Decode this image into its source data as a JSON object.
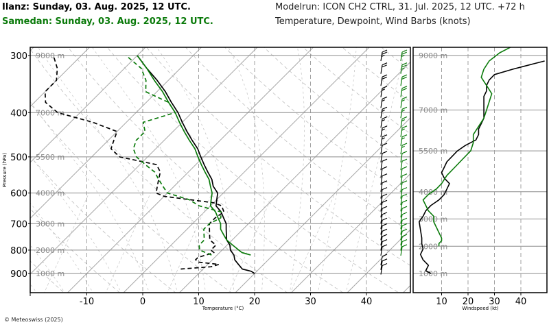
{
  "header": {
    "station1": "Ilanz: Sunday, 03. Aug. 2025, 12 UTC.",
    "station2": "Samedan: Sunday, 03. Aug. 2025, 12 UTC.",
    "modelrun": "Modelrun: ICON CH2 CTRL, 31. Jul. 2025, 12 UTC. +72 h",
    "params": "Temperature, Dewpoint, Wind Barbs (knots)"
  },
  "copyright": "© Meteoswiss (2025)",
  "colors": {
    "ilanz": "#000000",
    "samedan": "#0a7a0a",
    "grid": "#9a9a9a"
  },
  "chart_data": [
    {
      "type": "line",
      "subtype": "skew-t",
      "xlabel": "Temperature (°C)",
      "ylabel": "Pressure (hPa)",
      "x_ticks": [
        -10,
        0,
        10,
        20,
        30,
        40
      ],
      "pressure_ticks": [
        300,
        400,
        500,
        600,
        700,
        800,
        900
      ],
      "altitude_labels": [
        "9000 m",
        "7000 m",
        "5500 m",
        "4000 m",
        "3000 m",
        "2000 m",
        "1000 m"
      ],
      "series": [
        {
          "name": "Ilanz",
          "variable": "temperature",
          "style": "solid",
          "color": "#000000",
          "points": [
            [
              900,
              20
            ],
            [
              890,
              19
            ],
            [
              880,
              17
            ],
            [
              860,
              15.5
            ],
            [
              840,
              14
            ],
            [
              820,
              13
            ],
            [
              800,
              11.5
            ],
            [
              780,
              10.5
            ],
            [
              760,
              9
            ],
            [
              740,
              8
            ],
            [
              720,
              7
            ],
            [
              700,
              6
            ],
            [
              680,
              4.5
            ],
            [
              660,
              3
            ],
            [
              640,
              1
            ],
            [
              620,
              0
            ],
            [
              600,
              -1
            ],
            [
              580,
              -3
            ],
            [
              560,
              -4.5
            ],
            [
              540,
              -6.5
            ],
            [
              520,
              -8.5
            ],
            [
              500,
              -10.5
            ],
            [
              480,
              -12.5
            ],
            [
              460,
              -15
            ],
            [
              440,
              -17.5
            ],
            [
              420,
              -20
            ],
            [
              400,
              -22.5
            ],
            [
              380,
              -25.5
            ],
            [
              360,
              -28.5
            ],
            [
              340,
              -32
            ],
            [
              320,
              -36
            ],
            [
              300,
              -40
            ]
          ]
        },
        {
          "name": "Ilanz",
          "variable": "dewpoint",
          "style": "dashed",
          "color": "#000000",
          "points": [
            [
              880,
              6
            ],
            [
              870,
              11
            ],
            [
              860,
              12
            ],
            [
              850,
              8
            ],
            [
              840,
              7
            ],
            [
              830,
              7
            ],
            [
              820,
              8
            ],
            [
              810,
              9
            ],
            [
              800,
              8
            ],
            [
              780,
              8
            ],
            [
              760,
              6
            ],
            [
              740,
              5
            ],
            [
              720,
              4
            ],
            [
              700,
              3
            ],
            [
              680,
              3
            ],
            [
              660,
              3.5
            ],
            [
              640,
              2
            ],
            [
              630,
              0
            ],
            [
              620,
              -5
            ],
            [
              610,
              -10
            ],
            [
              600,
              -12
            ],
            [
              580,
              -13
            ],
            [
              560,
              -14
            ],
            [
              540,
              -15
            ],
            [
              520,
              -17
            ],
            [
              500,
              -25
            ],
            [
              480,
              -28
            ],
            [
              460,
              -29
            ],
            [
              440,
              -30
            ],
            [
              420,
              -36
            ],
            [
              400,
              -44
            ],
            [
              380,
              -48
            ],
            [
              360,
              -50
            ],
            [
              340,
              -50
            ],
            [
              320,
              -52
            ],
            [
              300,
              -55
            ]
          ]
        },
        {
          "name": "Samedan",
          "variable": "temperature",
          "style": "solid",
          "color": "#0a7a0a",
          "points": [
            [
              820,
              16
            ],
            [
              810,
              14
            ],
            [
              800,
              13
            ],
            [
              780,
              11
            ],
            [
              760,
              9
            ],
            [
              740,
              7.5
            ],
            [
              720,
              6
            ],
            [
              700,
              5
            ],
            [
              680,
              3.5
            ],
            [
              660,
              2
            ],
            [
              640,
              0
            ],
            [
              620,
              -1
            ],
            [
              600,
              -2
            ],
            [
              580,
              -3.5
            ],
            [
              560,
              -5
            ],
            [
              540,
              -7
            ],
            [
              520,
              -9
            ],
            [
              500,
              -11
            ],
            [
              480,
              -13
            ],
            [
              460,
              -15.5
            ],
            [
              440,
              -18
            ],
            [
              420,
              -20.5
            ],
            [
              400,
              -23
            ],
            [
              380,
              -26
            ],
            [
              360,
              -29
            ],
            [
              340,
              -32.5
            ],
            [
              320,
              -36
            ],
            [
              300,
              -40
            ]
          ]
        },
        {
          "name": "Samedan",
          "variable": "dewpoint",
          "style": "dashed",
          "color": "#0a7a0a",
          "points": [
            [
              820,
              9
            ],
            [
              800,
              6
            ],
            [
              780,
              5
            ],
            [
              760,
              5
            ],
            [
              740,
              4
            ],
            [
              720,
              3
            ],
            [
              700,
              3
            ],
            [
              680,
              4
            ],
            [
              660,
              3
            ],
            [
              640,
              -2
            ],
            [
              620,
              -5
            ],
            [
              600,
              -10
            ],
            [
              580,
              -12
            ],
            [
              560,
              -14
            ],
            [
              540,
              -16
            ],
            [
              520,
              -19
            ],
            [
              500,
              -22
            ],
            [
              480,
              -24
            ],
            [
              460,
              -25
            ],
            [
              440,
              -25
            ],
            [
              420,
              -27
            ],
            [
              400,
              -23
            ],
            [
              380,
              -26
            ],
            [
              360,
              -32
            ],
            [
              340,
              -34
            ],
            [
              320,
              -37
            ],
            [
              300,
              -42
            ]
          ]
        }
      ],
      "wind_barbs": [
        {
          "name": "Ilanz",
          "color": "#000000",
          "points": [
            [
              880,
              12
            ],
            [
              860,
              12
            ],
            [
              840,
              10
            ],
            [
              800,
              10
            ],
            [
              780,
              10
            ],
            [
              760,
              10
            ],
            [
              740,
              10
            ],
            [
              720,
              10
            ],
            [
              700,
              10
            ],
            [
              680,
              10
            ],
            [
              660,
              10
            ],
            [
              640,
              10
            ],
            [
              620,
              10
            ],
            [
              600,
              10
            ],
            [
              580,
              10
            ],
            [
              560,
              10
            ],
            [
              540,
              10
            ],
            [
              520,
              10
            ],
            [
              500,
              10
            ],
            [
              480,
              10
            ],
            [
              460,
              15
            ],
            [
              440,
              15
            ],
            [
              420,
              15
            ],
            [
              400,
              15
            ],
            [
              380,
              15
            ],
            [
              360,
              15
            ],
            [
              340,
              20
            ],
            [
              320,
              20
            ],
            [
              300,
              25
            ]
          ]
        },
        {
          "name": "Samedan",
          "color": "#0a7a0a",
          "points": [
            [
              800,
              10
            ],
            [
              780,
              10
            ],
            [
              760,
              10
            ],
            [
              740,
              10
            ],
            [
              720,
              10
            ],
            [
              700,
              10
            ],
            [
              680,
              10
            ],
            [
              660,
              10
            ],
            [
              640,
              10
            ],
            [
              620,
              10
            ],
            [
              600,
              10
            ],
            [
              580,
              10
            ],
            [
              560,
              10
            ],
            [
              540,
              10
            ],
            [
              520,
              10
            ],
            [
              500,
              10
            ],
            [
              480,
              15
            ],
            [
              460,
              15
            ],
            [
              440,
              15
            ],
            [
              420,
              15
            ],
            [
              400,
              15
            ],
            [
              380,
              15
            ],
            [
              360,
              20
            ],
            [
              340,
              20
            ],
            [
              320,
              25
            ],
            [
              300,
              25
            ]
          ]
        }
      ]
    },
    {
      "type": "line",
      "subtype": "wind-profile",
      "xlabel": "Windspeed (kt)",
      "x_ticks": [
        10,
        20,
        30,
        40
      ],
      "xlim": [
        -1,
        50
      ],
      "altitude_labels": [
        "9000 m",
        "7000 m",
        "5500 m",
        "4000 m",
        "3000 m",
        "2000 m",
        "1000 m"
      ],
      "series": [
        {
          "name": "Ilanz",
          "color": "#000000",
          "points": [
            [
              1000,
              6
            ],
            [
              1100,
              4
            ],
            [
              1300,
              5
            ],
            [
              1500,
              3
            ],
            [
              1700,
              2
            ],
            [
              1900,
              3
            ],
            [
              2100,
              2.5
            ],
            [
              2300,
              2.5
            ],
            [
              2600,
              2
            ],
            [
              2900,
              1.5
            ],
            [
              3100,
              3
            ],
            [
              3300,
              4
            ],
            [
              3500,
              6
            ],
            [
              3700,
              9
            ],
            [
              3900,
              11
            ],
            [
              4100,
              12
            ],
            [
              4300,
              13
            ],
            [
              4500,
              11
            ],
            [
              4700,
              10
            ],
            [
              4900,
              11
            ],
            [
              5100,
              12
            ],
            [
              5300,
              14
            ],
            [
              5500,
              16
            ],
            [
              5700,
              19
            ],
            [
              5900,
              23
            ],
            [
              6100,
              24
            ],
            [
              6300,
              24
            ],
            [
              6500,
              25
            ],
            [
              6700,
              26
            ],
            [
              6900,
              26
            ],
            [
              7100,
              26
            ],
            [
              7300,
              26
            ],
            [
              7500,
              26
            ],
            [
              7700,
              27
            ],
            [
              7900,
              27
            ],
            [
              8100,
              28
            ],
            [
              8300,
              30
            ],
            [
              8500,
              37
            ],
            [
              8700,
              45
            ],
            [
              8800,
              49
            ]
          ]
        },
        {
          "name": "Samedan",
          "color": "#0a7a0a",
          "points": [
            [
              2000,
              9
            ],
            [
              2100,
              9
            ],
            [
              2200,
              10
            ],
            [
              2300,
              10
            ],
            [
              2500,
              9
            ],
            [
              2700,
              8
            ],
            [
              2900,
              7
            ],
            [
              3100,
              7
            ],
            [
              3300,
              5
            ],
            [
              3500,
              4
            ],
            [
              3700,
              3
            ],
            [
              3900,
              5
            ],
            [
              4100,
              8
            ],
            [
              4300,
              10
            ],
            [
              4600,
              12
            ],
            [
              4900,
              15
            ],
            [
              5200,
              18
            ],
            [
              5500,
              21
            ],
            [
              5800,
              22
            ],
            [
              6100,
              22
            ],
            [
              6400,
              24
            ],
            [
              6700,
              26
            ],
            [
              7000,
              27
            ],
            [
              7300,
              28
            ],
            [
              7600,
              29
            ],
            [
              7900,
              27
            ],
            [
              8200,
              25
            ],
            [
              8500,
              26
            ],
            [
              8800,
              28
            ],
            [
              9100,
              32
            ],
            [
              9300,
              36
            ]
          ]
        }
      ]
    }
  ]
}
